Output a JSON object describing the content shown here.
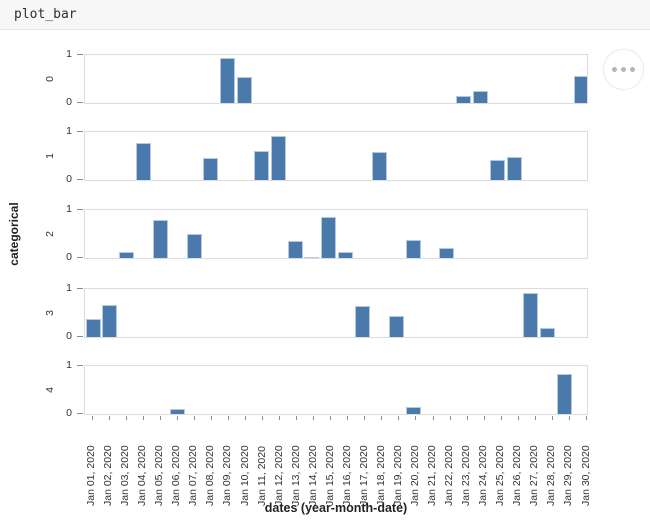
{
  "header": {
    "title": "plot_bar"
  },
  "menu": {
    "icon": "ellipsis-icon"
  },
  "chart_data": {
    "type": "bar",
    "title": "plot_bar",
    "xlabel": "dates (year-month-date)",
    "ylabel": "categorical",
    "ylim": [
      0,
      1
    ],
    "ytick_labels": [
      "1",
      "0"
    ],
    "bar_color": "#4a7aab",
    "x_categories": [
      "Jan 01, 2020",
      "Jan 02, 2020",
      "Jan 03, 2020",
      "Jan 04, 2020",
      "Jan 05, 2020",
      "Jan 06, 2020",
      "Jan 07, 2020",
      "Jan 08, 2020",
      "Jan 09, 2020",
      "Jan 10, 2020",
      "Jan 11, 2020",
      "Jan 12, 2020",
      "Jan 13, 2020",
      "Jan 14, 2020",
      "Jan 15, 2020",
      "Jan 16, 2020",
      "Jan 17, 2020",
      "Jan 18, 2020",
      "Jan 19, 2020",
      "Jan 20, 2020",
      "Jan 21, 2020",
      "Jan 22, 2020",
      "Jan 23, 2020",
      "Jan 24, 2020",
      "Jan 25, 2020",
      "Jan 26, 2020",
      "Jan 27, 2020",
      "Jan 28, 2020",
      "Jan 29, 2020",
      "Jan 30, 2020"
    ],
    "facets": [
      {
        "label": "0",
        "bars": [
          {
            "date": "Jan 09, 2020",
            "value": 0.95
          },
          {
            "date": "Jan 10, 2020",
            "value": 0.55
          },
          {
            "date": "Jan 23, 2020",
            "value": 0.15
          },
          {
            "date": "Jan 24, 2020",
            "value": 0.26
          },
          {
            "date": "Jan 30, 2020",
            "value": 0.57
          }
        ]
      },
      {
        "label": "1",
        "bars": [
          {
            "date": "Jan 04, 2020",
            "value": 0.79
          },
          {
            "date": "Jan 08, 2020",
            "value": 0.46
          },
          {
            "date": "Jan 11, 2020",
            "value": 0.61
          },
          {
            "date": "Jan 12, 2020",
            "value": 0.93
          },
          {
            "date": "Jan 18, 2020",
            "value": 0.59
          },
          {
            "date": "Jan 25, 2020",
            "value": 0.43
          },
          {
            "date": "Jan 26, 2020",
            "value": 0.48
          }
        ]
      },
      {
        "label": "2",
        "bars": [
          {
            "date": "Jan 03, 2020",
            "value": 0.13
          },
          {
            "date": "Jan 05, 2020",
            "value": 0.81
          },
          {
            "date": "Jan 07, 2020",
            "value": 0.51
          },
          {
            "date": "Jan 13, 2020",
            "value": 0.36
          },
          {
            "date": "Jan 14, 2020",
            "value": 0.03
          },
          {
            "date": "Jan 15, 2020",
            "value": 0.88
          },
          {
            "date": "Jan 16, 2020",
            "value": 0.13
          },
          {
            "date": "Jan 20, 2020",
            "value": 0.38
          },
          {
            "date": "Jan 22, 2020",
            "value": 0.22
          }
        ]
      },
      {
        "label": "3",
        "bars": [
          {
            "date": "Jan 01, 2020",
            "value": 0.38
          },
          {
            "date": "Jan 02, 2020",
            "value": 0.68
          },
          {
            "date": "Jan 17, 2020",
            "value": 0.67
          },
          {
            "date": "Jan 19, 2020",
            "value": 0.45
          },
          {
            "date": "Jan 27, 2020",
            "value": 0.93
          },
          {
            "date": "Jan 28, 2020",
            "value": 0.19
          }
        ]
      },
      {
        "label": "4",
        "bars": [
          {
            "date": "Jan 06, 2020",
            "value": 0.1
          },
          {
            "date": "Jan 20, 2020",
            "value": 0.14
          },
          {
            "date": "Jan 29, 2020",
            "value": 0.85
          }
        ]
      }
    ]
  }
}
